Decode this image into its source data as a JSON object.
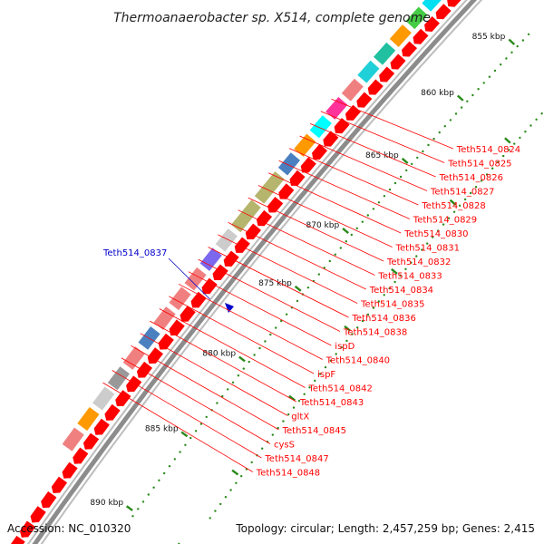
{
  "title": "Thermoanaerobacter sp. X514, complete genome",
  "footer": {
    "accession": "Accession: NC_010320",
    "summary": "Topology: circular; Length: 2,457,259 bp; Genes: 2,415"
  },
  "colors": {
    "backbone": "#8c8c8c",
    "tick": "#2a8a1a",
    "forward_gene": "#ff0000",
    "label_line": "#ff0000",
    "highlight_label": "#0000cc"
  },
  "scale_labels": [
    "855 kbp",
    "860 kbp",
    "865 kbp",
    "870 kbp",
    "875 kbp",
    "880 kbp",
    "885 kbp",
    "890 kbp"
  ],
  "highlight_gene": "Teth514_0837",
  "gene_labels": [
    "Teth514_0824",
    "Teth514_0825",
    "Teth514_0826",
    "Teth514_0827",
    "Teth514_0828",
    "Teth514_0829",
    "Teth514_0830",
    "Teth514_0831",
    "Teth514_0832",
    "Teth514_0833",
    "Teth514_0834",
    "Teth514_0835",
    "Teth514_0836",
    "Teth514_0838",
    "ispD",
    "Teth514_0840",
    "ispF",
    "Teth514_0842",
    "Teth514_0843",
    "gltX",
    "Teth514_0845",
    "cysS",
    "Teth514_0847",
    "Teth514_0848"
  ]
}
